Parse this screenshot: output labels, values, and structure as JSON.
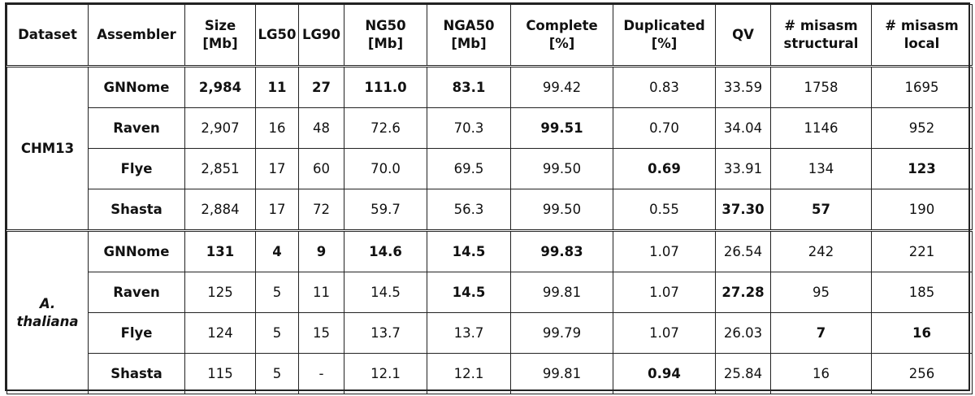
{
  "headers": [
    {
      "l1": "Dataset",
      "l2": ""
    },
    {
      "l1": "Assembler",
      "l2": ""
    },
    {
      "l1": "Size",
      "l2": "[Mb]"
    },
    {
      "l1": "LG50",
      "l2": ""
    },
    {
      "l1": "LG90",
      "l2": ""
    },
    {
      "l1": "NG50",
      "l2": "[Mb]"
    },
    {
      "l1": "NGA50",
      "l2": "[Mb]"
    },
    {
      "l1": "Complete",
      "l2": "[%]"
    },
    {
      "l1": "Duplicated",
      "l2": "[%]"
    },
    {
      "l1": "QV",
      "l2": ""
    },
    {
      "l1": "# misasm",
      "l2": "structural"
    },
    {
      "l1": "# misasm",
      "l2": "local"
    }
  ],
  "groups": [
    {
      "dataset": "CHM13",
      "rows": [
        {
          "assembler": "GNNome",
          "cells": [
            "2,984",
            "11",
            "27",
            "111.0",
            "83.1",
            "99.42",
            "0.83",
            "33.59",
            "1758",
            "1695"
          ],
          "bold": [
            true,
            true,
            true,
            true,
            true,
            false,
            false,
            false,
            false,
            false
          ]
        },
        {
          "assembler": "Raven",
          "cells": [
            "2,907",
            "16",
            "48",
            "72.6",
            "70.3",
            "99.51",
            "0.70",
            "34.04",
            "1146",
            "952"
          ],
          "bold": [
            false,
            false,
            false,
            false,
            false,
            true,
            false,
            false,
            false,
            false
          ]
        },
        {
          "assembler": "Flye",
          "cells": [
            "2,851",
            "17",
            "60",
            "70.0",
            "69.5",
            "99.50",
            "0.69",
            "33.91",
            "134",
            "123"
          ],
          "bold": [
            false,
            false,
            false,
            false,
            false,
            false,
            true,
            false,
            false,
            true
          ]
        },
        {
          "assembler": "Shasta",
          "cells": [
            "2,884",
            "17",
            "72",
            "59.7",
            "56.3",
            "99.50",
            "0.55",
            "37.30",
            "57",
            "190"
          ],
          "bold": [
            false,
            false,
            false,
            false,
            false,
            false,
            false,
            true,
            true,
            false
          ]
        }
      ]
    },
    {
      "dataset": "A. thaliana",
      "dataset_l1": "A.",
      "dataset_l2": "thaliana",
      "rows": [
        {
          "assembler": "GNNome",
          "cells": [
            "131",
            "4",
            "9",
            "14.6",
            "14.5",
            "99.83",
            "1.07",
            "26.54",
            "242",
            "221"
          ],
          "bold": [
            true,
            true,
            true,
            true,
            true,
            true,
            false,
            false,
            false,
            false
          ]
        },
        {
          "assembler": "Raven",
          "cells": [
            "125",
            "5",
            "11",
            "14.5",
            "14.5",
            "99.81",
            "1.07",
            "27.28",
            "95",
            "185"
          ],
          "bold": [
            false,
            false,
            false,
            false,
            true,
            false,
            false,
            true,
            false,
            false
          ]
        },
        {
          "assembler": "Flye",
          "cells": [
            "124",
            "5",
            "15",
            "13.7",
            "13.7",
            "99.79",
            "1.07",
            "26.03",
            "7",
            "16"
          ],
          "bold": [
            false,
            false,
            false,
            false,
            false,
            false,
            false,
            false,
            true,
            true
          ]
        },
        {
          "assembler": "Shasta",
          "cells": [
            "115",
            "5",
            "-",
            "12.1",
            "12.1",
            "99.81",
            "0.94",
            "25.84",
            "16",
            "256"
          ],
          "bold": [
            false,
            false,
            false,
            false,
            false,
            false,
            true,
            false,
            false,
            false
          ]
        }
      ]
    }
  ]
}
